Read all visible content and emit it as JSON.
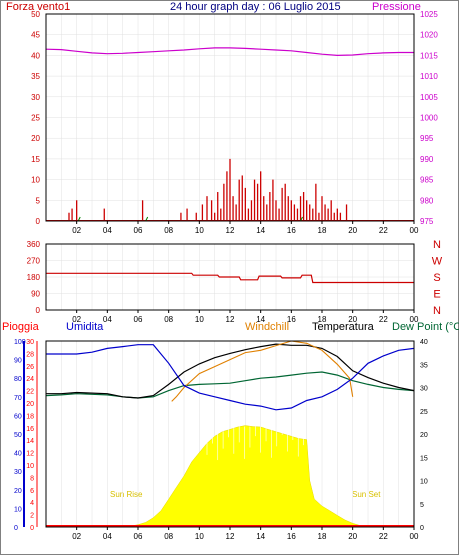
{
  "title": "24 hour graph day : 06 Luglio 2015",
  "colors": {
    "wind": "#cc0000",
    "pressure": "#cc00cc",
    "direction": "#cc0000",
    "rain": "#ff0000",
    "humidity": "#0000cc",
    "windchill": "#e08000",
    "temperature": "#000000",
    "dewpoint": "#006633",
    "solar": "#ffff00",
    "title": "#000080"
  },
  "chart_data": [
    {
      "type": "line",
      "panel": "wind-pressure",
      "left_label": "Forza vento1",
      "right_label": "Pressione",
      "x_ticks": [
        "02",
        "04",
        "06",
        "08",
        "10",
        "12",
        "14",
        "16",
        "18",
        "20",
        "22",
        "00"
      ],
      "left_axis": {
        "ticks": [
          "0",
          "5",
          "10",
          "15",
          "20",
          "25",
          "30",
          "35",
          "40",
          "45",
          "50"
        ],
        "range": [
          0,
          50
        ]
      },
      "right_axis": {
        "ticks": [
          "975",
          "980",
          "985",
          "990",
          "995",
          "1000",
          "1005",
          "1010",
          "1015",
          "1020",
          "1025"
        ],
        "range": [
          975,
          1025
        ]
      },
      "series": [
        {
          "name": "Forza vento1",
          "style": "bars",
          "x": [
            1.5,
            1.7,
            2.0,
            3.8,
            6.3,
            8.8,
            9.2,
            9.8,
            10.2,
            10.5,
            10.8,
            11.0,
            11.2,
            11.4,
            11.6,
            11.8,
            12.0,
            12.2,
            12.4,
            12.6,
            12.8,
            13.0,
            13.2,
            13.4,
            13.6,
            13.8,
            14.0,
            14.2,
            14.4,
            14.6,
            14.8,
            15.0,
            15.2,
            15.4,
            15.6,
            15.8,
            16.0,
            16.2,
            16.4,
            16.6,
            16.8,
            17.0,
            17.2,
            17.4,
            17.6,
            17.8,
            18.0,
            18.2,
            18.4,
            18.6,
            18.8,
            19.0,
            19.2,
            19.6
          ],
          "values": [
            2,
            3,
            5,
            3,
            5,
            2,
            3,
            2,
            4,
            6,
            5,
            2,
            7,
            3,
            9,
            12,
            15,
            6,
            4,
            10,
            11,
            8,
            3,
            5,
            10,
            9,
            12,
            6,
            4,
            7,
            10,
            5,
            3,
            8,
            9,
            6,
            5,
            4,
            3,
            6,
            7,
            5,
            4,
            3,
            9,
            2,
            6,
            4,
            3,
            5,
            2,
            3,
            2,
            4
          ]
        },
        {
          "name": "Pressione",
          "x": [
            0,
            1,
            2,
            3,
            4,
            5,
            6,
            7,
            8,
            9,
            10,
            11,
            12,
            13,
            14,
            15,
            16,
            17,
            18,
            19,
            20,
            21,
            22,
            23,
            24
          ],
          "values": [
            1016.5,
            1016.4,
            1016,
            1015.6,
            1015.4,
            1015.5,
            1015.7,
            1015.9,
            1016.1,
            1016.3,
            1016.6,
            1016.8,
            1016.8,
            1016.7,
            1016.5,
            1016.3,
            1016.1,
            1015.7,
            1015.3,
            1015.0,
            1015.1,
            1015.4,
            1015.6,
            1015.7,
            1015.7
          ]
        }
      ]
    },
    {
      "type": "line",
      "panel": "wind-direction",
      "x_ticks": [
        "02",
        "04",
        "06",
        "08",
        "10",
        "12",
        "14",
        "16",
        "18",
        "20",
        "22",
        "00"
      ],
      "left_axis": {
        "ticks": [
          "360",
          "270",
          "180",
          "90",
          "0"
        ],
        "range": [
          0,
          360
        ]
      },
      "right_labels": [
        "N",
        "W",
        "S",
        "E",
        "N"
      ],
      "series": [
        {
          "x": [
            0,
            9.5,
            9.6,
            11.2,
            11.3,
            12.6,
            12.7,
            13.8,
            13.9,
            15.3,
            15.4,
            16.6,
            16.7,
            17.3,
            17.4,
            24
          ],
          "values": [
            200,
            200,
            190,
            190,
            180,
            180,
            165,
            165,
            185,
            185,
            175,
            175,
            190,
            190,
            150,
            150
          ]
        }
      ]
    },
    {
      "type": "line",
      "panel": "temperature-humidity",
      "labels": {
        "rain": "Pioggia",
        "humidity": "Umidita",
        "windchill": "Windchill",
        "temperature": "Temperatura",
        "dewpoint": "Dew Point (°C"
      },
      "x_ticks": [
        "02",
        "04",
        "06",
        "08",
        "10",
        "12",
        "14",
        "16",
        "18",
        "20",
        "22",
        "00"
      ],
      "humidity_axis": {
        "ticks": [
          "0",
          "10",
          "20",
          "30",
          "40",
          "50",
          "60",
          "70",
          "80",
          "90",
          "100"
        ],
        "range": [
          0,
          100
        ]
      },
      "temp_axis": {
        "ticks": [
          "0",
          "2",
          "4",
          "6",
          "8",
          "10",
          "12",
          "14",
          "16",
          "18",
          "20",
          "22",
          "24",
          "26",
          "28",
          "30"
        ],
        "range": [
          0,
          30
        ]
      },
      "right_axis": {
        "ticks": [
          "0",
          "5",
          "10",
          "15",
          "20",
          "25",
          "30",
          "35",
          "40"
        ],
        "range": [
          0,
          40
        ]
      },
      "annotations": {
        "sunrise": "Sun Rise",
        "sunset": "Sun Set"
      },
      "series": [
        {
          "name": "Umidita",
          "x": [
            0,
            1,
            2,
            3,
            4,
            5,
            6,
            7,
            8,
            9,
            10,
            11,
            12,
            13,
            14,
            15,
            16,
            17,
            18,
            19,
            20,
            21,
            22,
            23,
            24
          ],
          "values": [
            93,
            93,
            93,
            94,
            96,
            97,
            98,
            98,
            88,
            76,
            72,
            70,
            68,
            66,
            65,
            63,
            64,
            68,
            70,
            74,
            80,
            88,
            92,
            95,
            96
          ]
        },
        {
          "name": "Windchill",
          "x": [
            8.2,
            8.5,
            9,
            10,
            11,
            12,
            13,
            14,
            15,
            16,
            17,
            18,
            19,
            19.8,
            20
          ],
          "values": [
            27,
            28,
            30,
            33,
            34.5,
            36,
            37.5,
            38,
            39,
            40,
            39.5,
            38,
            35,
            32,
            28
          ]
        },
        {
          "name": "Temperatura",
          "x": [
            0,
            1,
            2,
            3,
            4,
            5,
            6,
            7,
            8,
            9,
            10,
            11,
            12,
            13,
            14,
            15,
            16,
            17,
            18,
            19,
            20,
            21,
            22,
            23,
            24
          ],
          "values": [
            21.5,
            21.5,
            21.7,
            21.6,
            21.5,
            21.0,
            20.8,
            21.2,
            23.0,
            25.0,
            26.3,
            27.3,
            28.0,
            28.6,
            29.1,
            29.5,
            29.3,
            29.3,
            28.8,
            27.5,
            25.2,
            24.1,
            23.2,
            22.5,
            22.0
          ]
        },
        {
          "name": "Dew Point",
          "x": [
            0,
            1,
            2,
            3,
            4,
            5,
            6,
            7,
            8,
            9,
            10,
            11,
            12,
            13,
            14,
            15,
            16,
            17,
            18,
            19,
            20,
            21,
            22,
            23,
            24
          ],
          "values": [
            21.2,
            21.3,
            21.5,
            21.4,
            21.3,
            21.0,
            20.8,
            21.0,
            22.0,
            22.8,
            23.0,
            23.1,
            23.2,
            23.6,
            24.0,
            24.2,
            24.5,
            24.8,
            25.0,
            24.5,
            23.6,
            23.0,
            22.5,
            22.2,
            22.0
          ]
        },
        {
          "name": "Solar",
          "x": [
            5.0,
            5.5,
            6,
            6.5,
            7,
            7.5,
            8,
            8.5,
            9,
            9.5,
            10,
            10.5,
            11,
            11.5,
            12,
            12.5,
            13,
            13.5,
            14,
            14.5,
            15,
            15.5,
            16,
            16.5,
            17,
            17.2,
            17.5,
            18,
            18.5,
            19,
            19.5,
            20,
            20.5,
            21
          ],
          "values": [
            0,
            0.2,
            0.5,
            1,
            2,
            3.5,
            6,
            8.5,
            11,
            14,
            16,
            18,
            19.5,
            20.5,
            21,
            21.5,
            21.8,
            21.6,
            21.5,
            21,
            20.5,
            20,
            19.5,
            19,
            18.8,
            10,
            6,
            4.5,
            3.5,
            2.5,
            1.5,
            0.8,
            0.3,
            0
          ]
        }
      ]
    }
  ]
}
